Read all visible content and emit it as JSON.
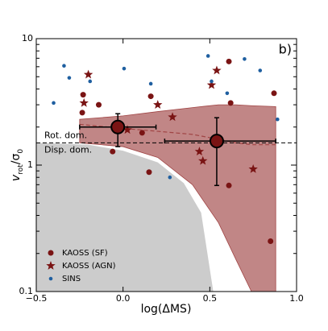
{
  "chart_data": {
    "type": "scatter",
    "xlabel": "log(ΔMS)",
    "ylabel": [
      "v",
      "rot",
      "/σ",
      "0"
    ],
    "xlim": [
      -0.5,
      1.0
    ],
    "ylim": [
      0.1,
      10
    ],
    "yscale": "log",
    "xticks": [
      {
        "value": -0.5,
        "label": "−0.5"
      },
      {
        "value": 0,
        "label": "0.0"
      },
      {
        "value": 0.5,
        "label": "0.5"
      },
      {
        "value": 1,
        "label": "1.0"
      }
    ],
    "yticks": [
      0.1,
      1,
      10
    ],
    "threshold": 1.5,
    "annotations": [
      "Rot. dom.",
      "Disp. dom.",
      "b)"
    ],
    "legend": "lower left",
    "disp_region": {
      "color": "#cccccc",
      "x": [
        -0.5,
        -0.2,
        0,
        0.2,
        0.35,
        0.45,
        0.52
      ],
      "y": [
        1.5,
        1.45,
        1.3,
        1.05,
        0.72,
        0.42,
        0.1
      ]
    },
    "band": {
      "color": "#a04545",
      "x": [
        -0.25,
        0,
        0.2,
        0.4,
        0.55,
        0.65,
        0.74,
        0.88
      ],
      "upper": [
        2.3,
        2.45,
        2.65,
        2.85,
        3.0,
        3.0,
        2.95,
        2.9
      ],
      "lower": [
        1.5,
        1.4,
        1.15,
        0.7,
        0.35,
        0.18,
        0.1,
        0.1
      ],
      "median": [
        2.1,
        1.95,
        1.85,
        1.75,
        1.6,
        1.5,
        1.45,
        1.45
      ]
    },
    "series": [
      {
        "name": "KAOSS (SF)",
        "marker": "circle",
        "color": "#7a1414",
        "x": [
          -0.23,
          -0.235,
          -0.14,
          -0.06,
          0.11,
          0.16,
          0.15,
          0.61,
          0.62,
          0.61,
          0.87,
          0.85
        ],
        "y": [
          3.6,
          2.6,
          3.0,
          1.28,
          1.8,
          3.5,
          0.88,
          6.6,
          3.1,
          0.69,
          3.7,
          0.25
        ]
      },
      {
        "name": "KAOSS (AGN)",
        "marker": "star",
        "color": "#7a1414",
        "x": [
          -0.2,
          -0.225,
          0.025,
          0.2,
          0.285,
          0.44,
          0.46,
          0.51,
          0.54,
          0.75
        ],
        "y": [
          5.2,
          3.1,
          1.9,
          3.0,
          2.4,
          1.28,
          1.08,
          4.3,
          5.6,
          0.93
        ]
      },
      {
        "name": "SINS",
        "marker": "dot",
        "color": "#1f5fa0",
        "x": [
          -0.4,
          -0.34,
          -0.31,
          -0.19,
          0.006,
          0.16,
          0.27,
          0.49,
          0.51,
          0.6,
          0.7,
          0.79,
          0.89
        ],
        "y": [
          3.1,
          6.1,
          4.9,
          4.6,
          5.8,
          4.4,
          0.8,
          7.3,
          4.6,
          3.7,
          6.9,
          5.6,
          2.3
        ]
      }
    ],
    "binned": {
      "color": "#7a1414",
      "x": [
        -0.03,
        0.54
      ],
      "y": [
        2.0,
        1.55
      ],
      "xlow": [
        -0.25,
        0.24
      ],
      "xhigh": [
        0.19,
        0.88
      ],
      "ylow": [
        1.4,
        0.69
      ],
      "yhigh": [
        2.55,
        2.37
      ]
    }
  }
}
